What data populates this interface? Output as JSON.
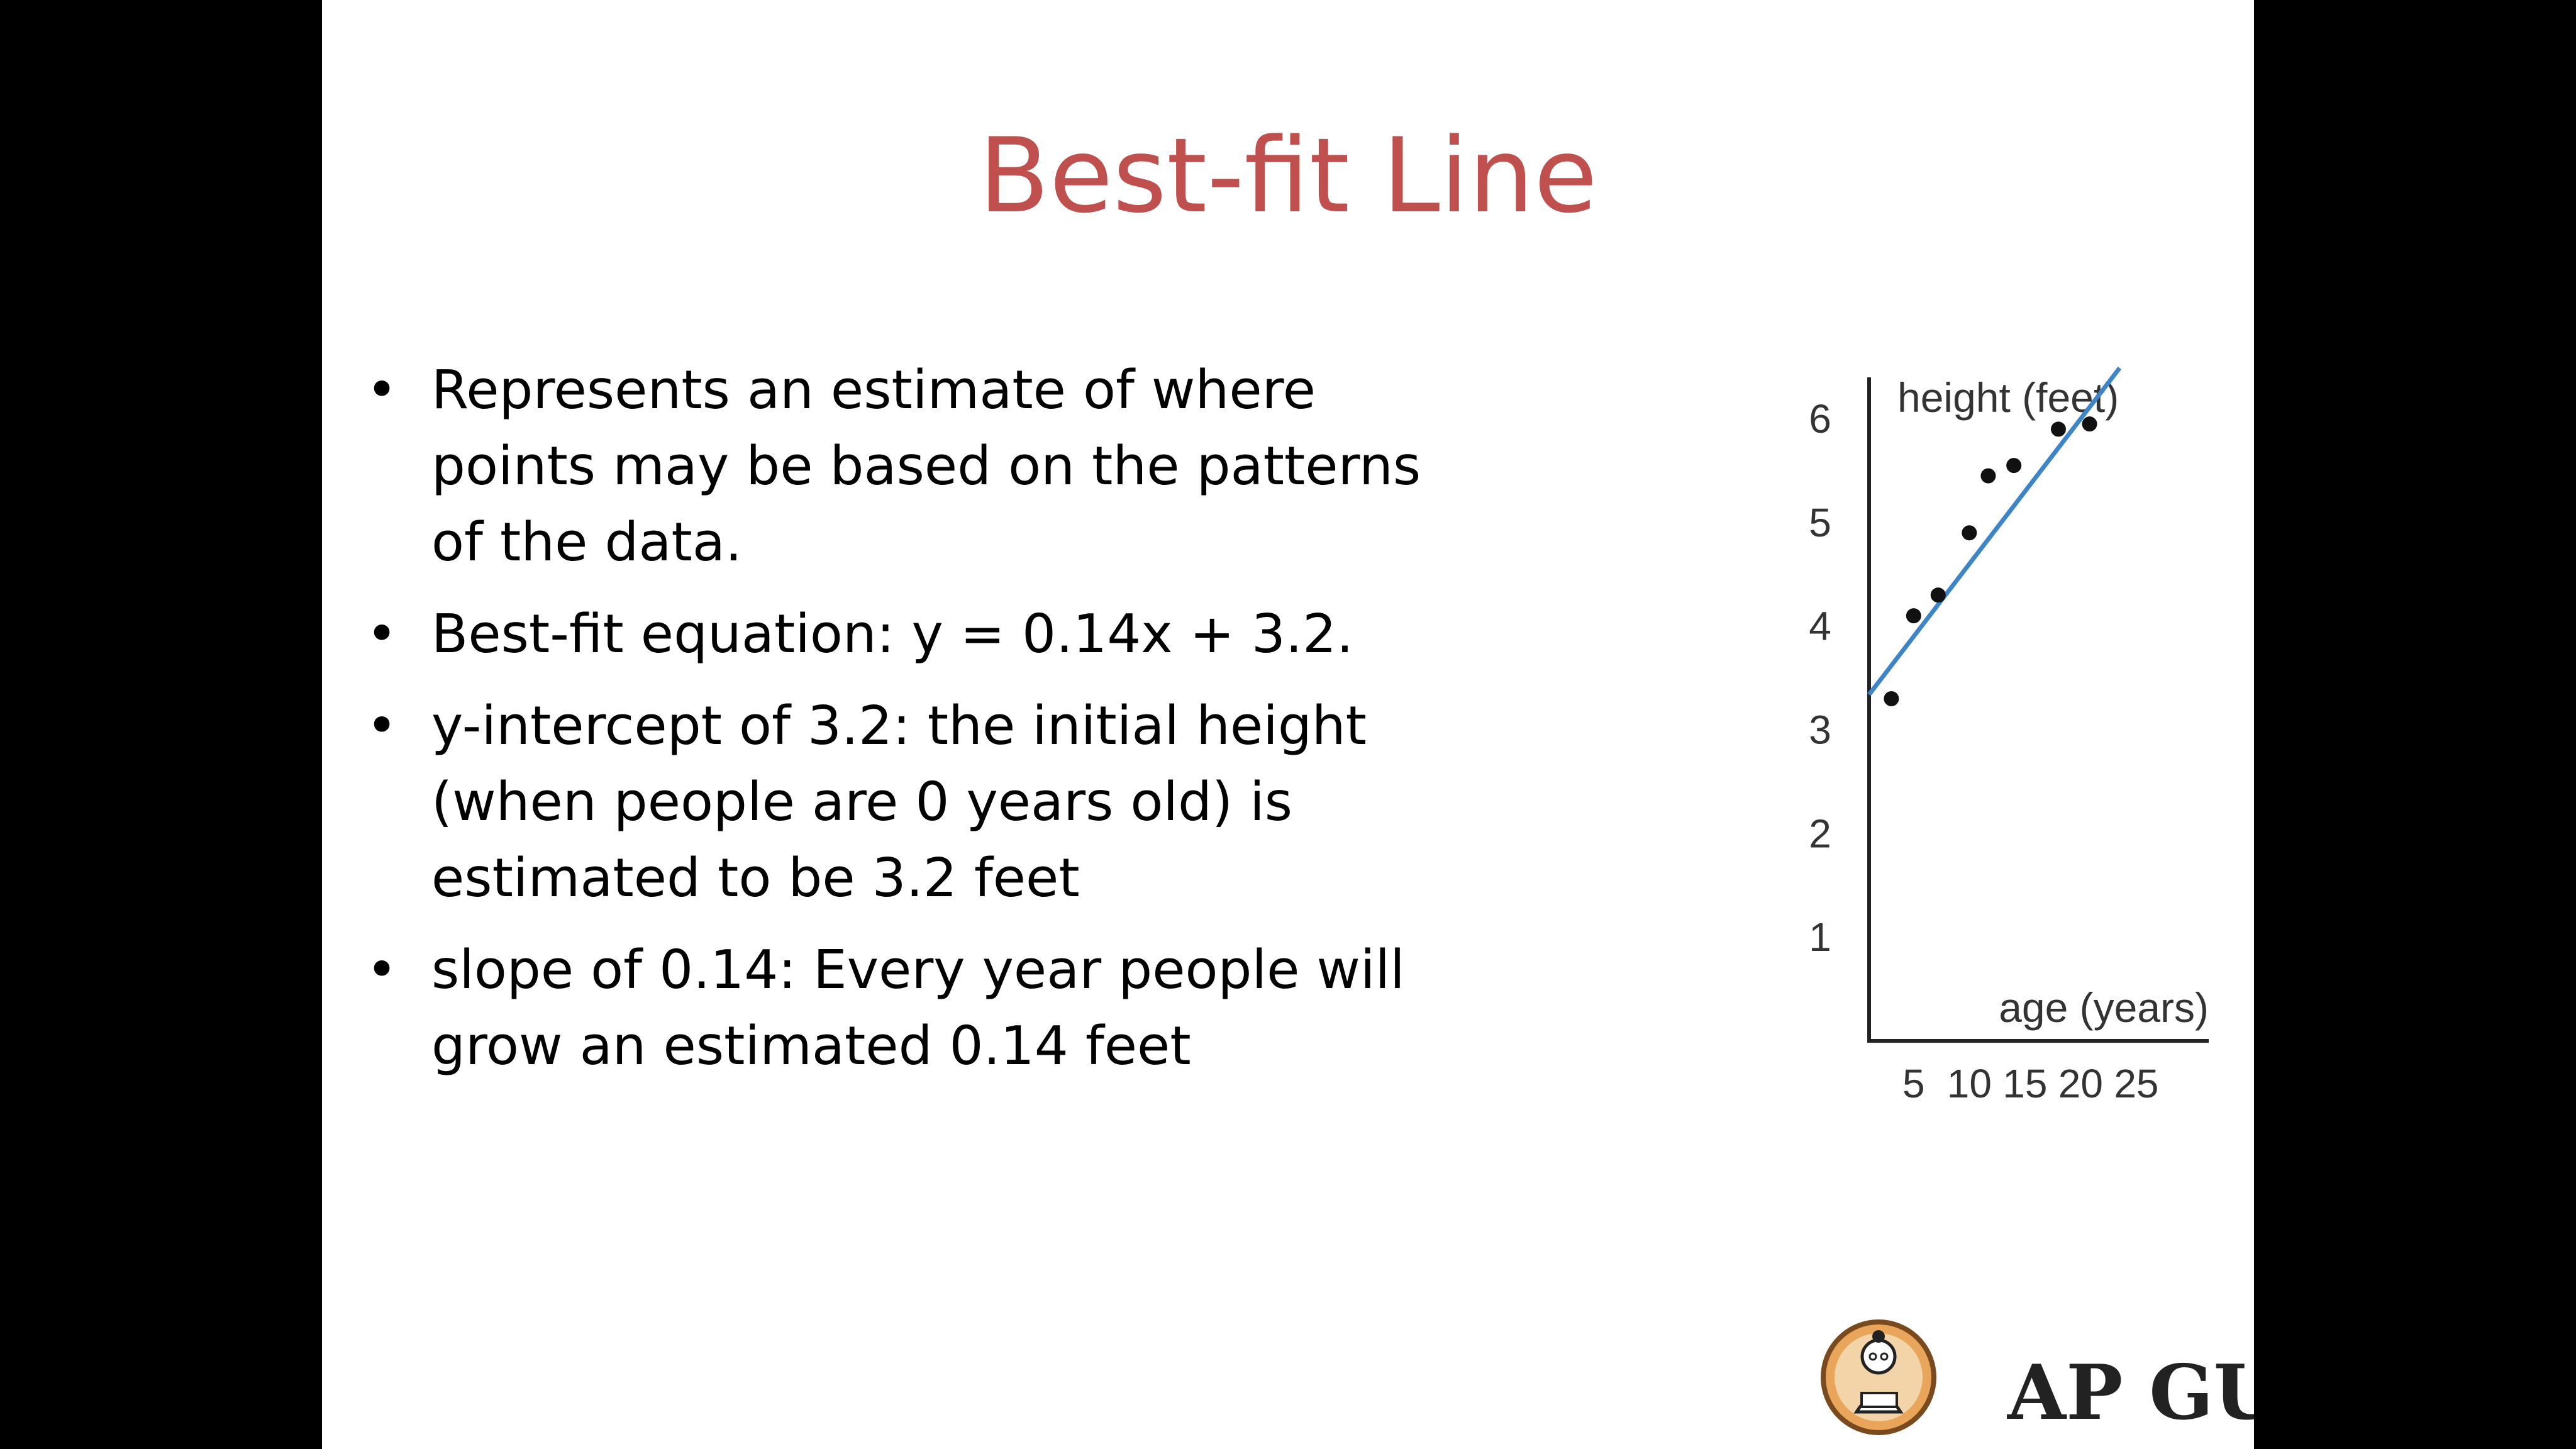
{
  "slide": {
    "title": "Best-fit Line",
    "bullets": [
      "Represents an estimate of where points may be based on the patterns of the data.",
      "Best-fit equation: y = 0.14x + 3.2.",
      "y-intercept of 3.2: the initial height (when people are 0 years old) is estimated to be 3.2 feet",
      "slope of 0.14: Every year people will grow an estimated 0.14 feet"
    ],
    "bullet_glyph": "•"
  },
  "chart_data": {
    "type": "scatter",
    "ylabel": "height (feet)",
    "xlabel": "age (years)",
    "x_ticks": [
      5,
      10,
      15,
      20,
      25
    ],
    "y_ticks": [
      1,
      2,
      3,
      4,
      5,
      6
    ],
    "xlim": [
      1,
      31.5
    ],
    "ylim": [
      0,
      6.4
    ],
    "grid": false,
    "points": [
      {
        "x": 3,
        "y": 3.3
      },
      {
        "x": 5,
        "y": 4.1
      },
      {
        "x": 7.2,
        "y": 4.3
      },
      {
        "x": 10,
        "y": 4.9
      },
      {
        "x": 11.7,
        "y": 5.45
      },
      {
        "x": 14,
        "y": 5.55
      },
      {
        "x": 18,
        "y": 5.9
      },
      {
        "x": 20.8,
        "y": 5.95
      }
    ],
    "fit_line": {
      "slope": 0.14,
      "intercept": 3.2,
      "x_range": [
        1,
        23.5
      ]
    },
    "colors": {
      "line": "#3d85c6",
      "points": "#111111",
      "axes": "#222222",
      "text": "#333333"
    }
  },
  "logo": {
    "text": "AP GURU",
    "icon": "reading-student-icon"
  }
}
